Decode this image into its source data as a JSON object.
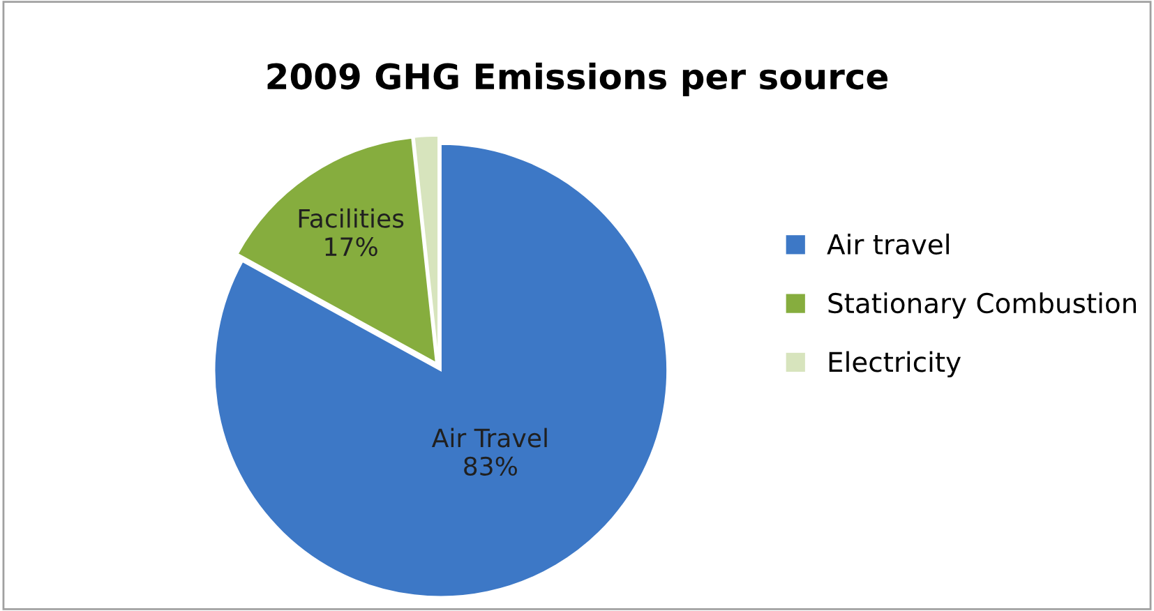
{
  "chart_data": {
    "type": "pie",
    "title": "2009 GHG Emissions per source",
    "categories": [
      "Air travel",
      "Stationary Combustion",
      "Electricity"
    ],
    "values": [
      83,
      15.3,
      1.7
    ],
    "colors": [
      "#3d78c6",
      "#86ad3e",
      "#d7e4bd"
    ],
    "value_labels": [
      "Air Travel\n83%",
      "Facilities\n17%",
      null
    ],
    "legend": "right"
  }
}
